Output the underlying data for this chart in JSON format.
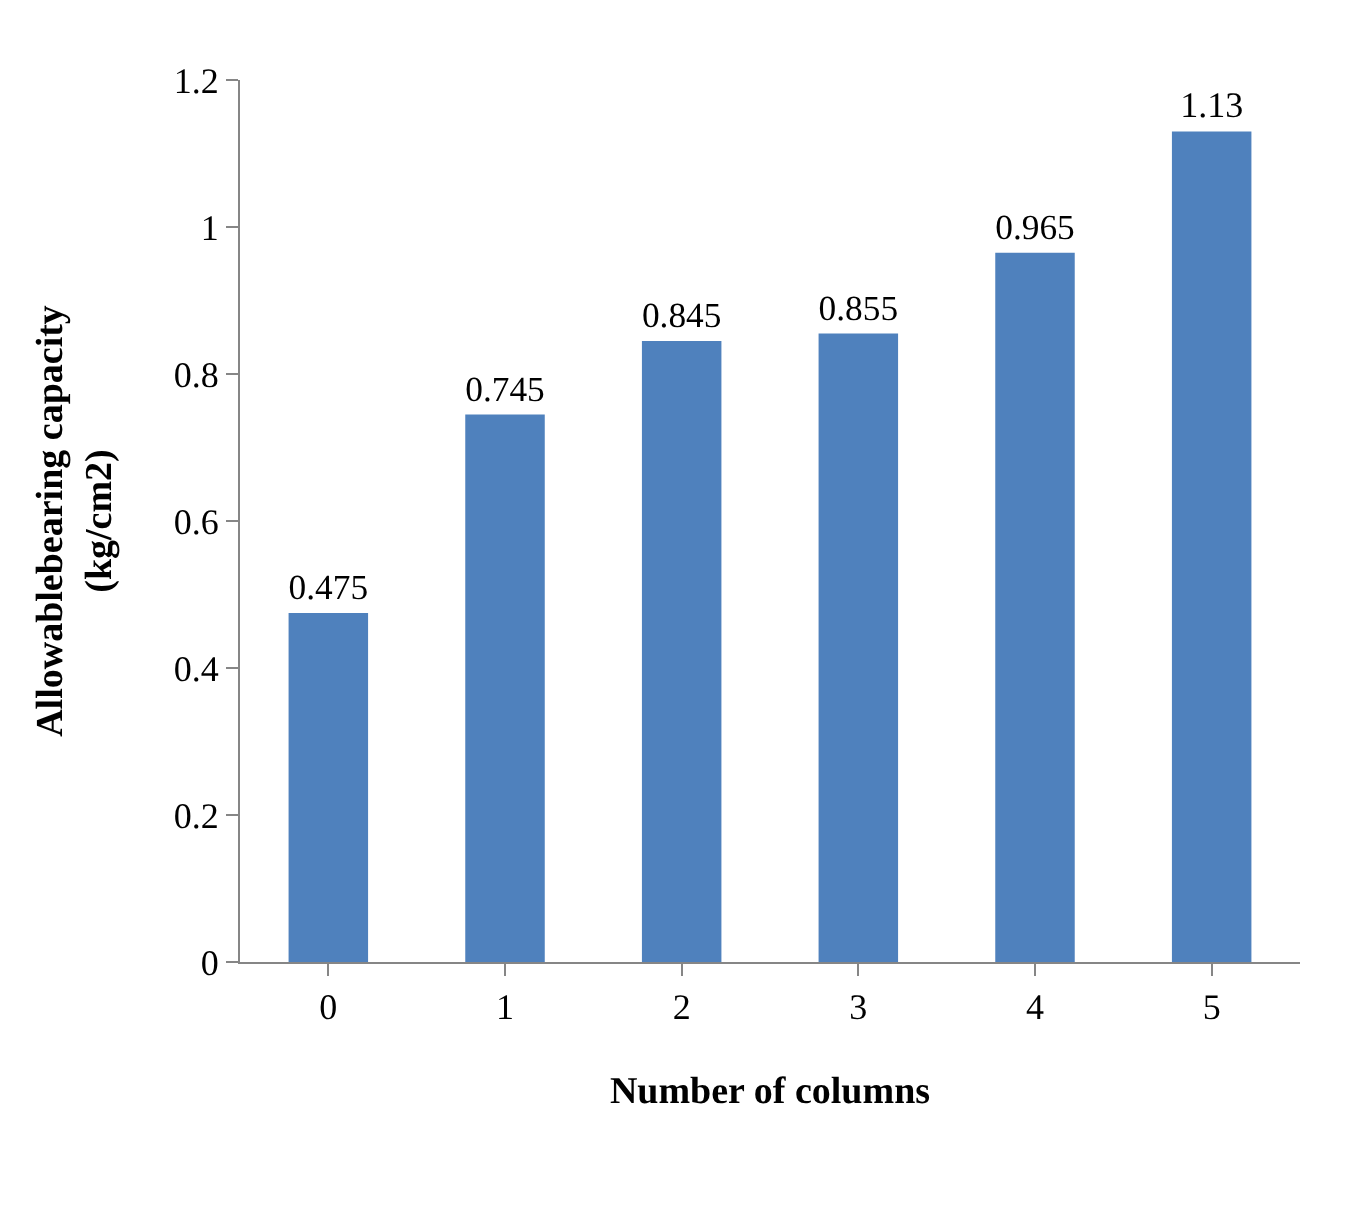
{
  "chart_data": {
    "type": "bar",
    "xlabel": "Number of columns",
    "ylabel": "Allowablebearing capacity\n(kg/cm2)",
    "categories": [
      "0",
      "1",
      "2",
      "3",
      "4",
      "5"
    ],
    "values": [
      0.475,
      0.745,
      0.845,
      0.855,
      0.965,
      1.13
    ],
    "color": "#4f81bd",
    "ylim": [
      0,
      1.2
    ],
    "yticks": [
      0,
      0.2,
      0.4,
      0.6,
      0.8,
      1,
      1.2
    ],
    "data_labels": true
  }
}
